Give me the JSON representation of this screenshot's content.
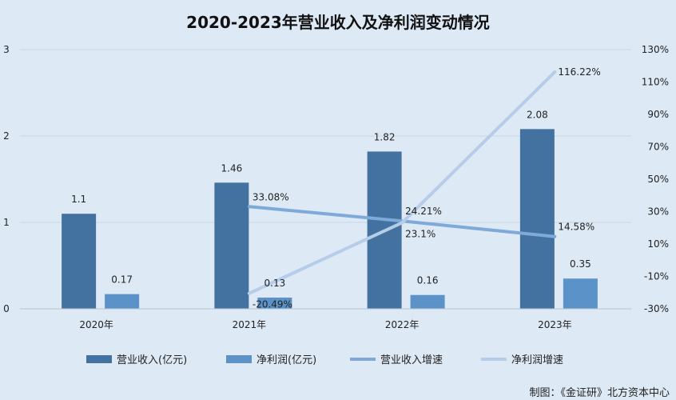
{
  "chart_data": {
    "type": "bar",
    "title": "2020-2023年营业收入及净利润变动情况",
    "categories": [
      "2020年",
      "2021年",
      "2022年",
      "2023年"
    ],
    "ylim": [
      0,
      3
    ],
    "y_ticks": [
      "0",
      "1",
      "2",
      "3"
    ],
    "y2lim": [
      -30,
      130
    ],
    "y2_ticks": [
      "-30%",
      "-10%",
      "10%",
      "30%",
      "50%",
      "70%",
      "90%",
      "110%",
      "130%"
    ],
    "grid": true,
    "legend_position": "bottom",
    "series": [
      {
        "name": "营业收入(亿元)",
        "kind": "bar",
        "axis": "left",
        "color": "#4472a0",
        "values": [
          1.1,
          1.46,
          1.82,
          2.08
        ],
        "labels": [
          "1.1",
          "1.46",
          "1.82",
          "2.08"
        ]
      },
      {
        "name": "净利润(亿元)",
        "kind": "bar",
        "axis": "left",
        "color": "#5b93c8",
        "values": [
          0.17,
          0.13,
          0.16,
          0.35
        ],
        "labels": [
          "0.17",
          "0.13",
          "0.16",
          "0.35"
        ]
      },
      {
        "name": "营业收入增速",
        "kind": "line",
        "axis": "right",
        "color": "#7ea9d8",
        "values": [
          null,
          33.08,
          24.21,
          14.58
        ],
        "labels": [
          null,
          "33.08%",
          "24.21%",
          "14.58%"
        ]
      },
      {
        "name": "净利润增速",
        "kind": "line",
        "axis": "right",
        "color": "#b6cde9",
        "values": [
          null,
          -20.49,
          23.1,
          116.22
        ],
        "labels": [
          null,
          "-20.49%",
          "23.1%",
          "116.22%"
        ]
      }
    ]
  },
  "footer": {
    "credit": "制图：《金证研》北方资本中心"
  }
}
